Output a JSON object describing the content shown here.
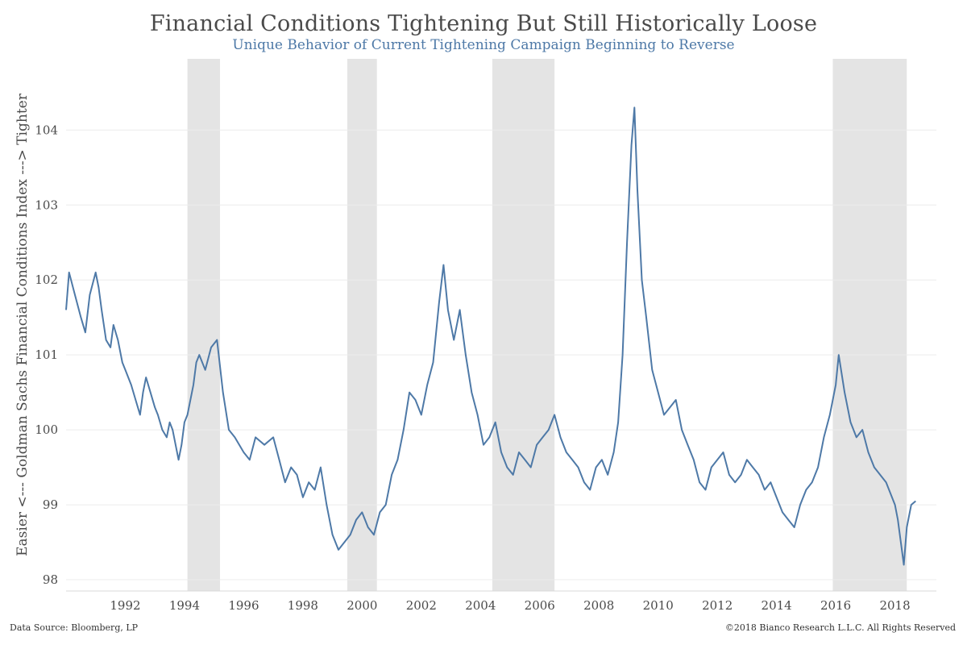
{
  "header": {
    "title": "Financial Conditions Tightening But Still Historically Loose",
    "subtitle": "Unique Behavior of Current Tightening Campaign Beginning to Reverse"
  },
  "footer": {
    "source": "Data Source: Bloomberg, LP",
    "copyright": "©2018 Bianco Research L.L.C.  All Rights Reserved"
  },
  "chart_data": {
    "type": "line",
    "title": "Financial Conditions Tightening But Still Historically Loose",
    "subtitle": "Unique Behavior of Current Tightening Campaign Beginning to Reverse",
    "xlabel": "",
    "ylabel": "Easier <--- Goldman Sachs Financial Conditions Index ---> Tighter",
    "xlim": [
      1990.0,
      2019.4
    ],
    "ylim": [
      97.85,
      104.95
    ],
    "x_ticks": [
      1992,
      1994,
      1996,
      1998,
      2000,
      2002,
      2004,
      2006,
      2008,
      2010,
      2012,
      2014,
      2016,
      2018
    ],
    "y_ticks": [
      98,
      99,
      100,
      101,
      102,
      103,
      104
    ],
    "grid": "horizontal",
    "legend": "none",
    "line_color": "#4e79a7",
    "shade_color": "#e4e4e4",
    "shaded_periods": [
      [
        1994.1,
        1995.2
      ],
      [
        1999.5,
        2000.5
      ],
      [
        2004.4,
        2006.5
      ],
      [
        2015.9,
        2018.4
      ]
    ],
    "series": [
      {
        "x": [
          1990.0,
          1990.1,
          1990.3,
          1990.5,
          1990.65,
          1990.8,
          1991.0,
          1991.1,
          1991.2,
          1991.35,
          1991.5,
          1991.6,
          1991.75,
          1991.9,
          1992.0,
          1992.2,
          1992.35,
          1992.5,
          1992.6,
          1992.7,
          1992.85,
          1993.0,
          1993.1,
          1993.25,
          1993.4,
          1993.5,
          1993.6,
          1993.7,
          1993.8,
          1993.9,
          1994.0,
          1994.1,
          1994.3,
          1994.4,
          1994.5,
          1994.7,
          1994.9,
          1995.1,
          1995.3,
          1995.5,
          1995.7,
          1996.0,
          1996.2,
          1996.4,
          1996.7,
          1997.0,
          1997.2,
          1997.4,
          1997.6,
          1997.8,
          1998.0,
          1998.2,
          1998.4,
          1998.6,
          1998.8,
          1999.0,
          1999.2,
          1999.4,
          1999.6,
          1999.8,
          2000.0,
          2000.2,
          2000.4,
          2000.6,
          2000.8,
          2001.0,
          2001.2,
          2001.4,
          2001.6,
          2001.8,
          2002.0,
          2002.2,
          2002.4,
          2002.6,
          2002.75,
          2002.9,
          2003.1,
          2003.3,
          2003.5,
          2003.7,
          2003.9,
          2004.1,
          2004.3,
          2004.5,
          2004.7,
          2004.9,
          2005.1,
          2005.3,
          2005.5,
          2005.7,
          2005.9,
          2006.1,
          2006.3,
          2006.5,
          2006.7,
          2006.9,
          2007.1,
          2007.3,
          2007.5,
          2007.7,
          2007.9,
          2008.1,
          2008.3,
          2008.5,
          2008.65,
          2008.8,
          2008.95,
          2009.1,
          2009.2,
          2009.3,
          2009.45,
          2009.6,
          2009.8,
          2010.0,
          2010.2,
          2010.4,
          2010.6,
          2010.8,
          2011.0,
          2011.2,
          2011.4,
          2011.6,
          2011.8,
          2012.0,
          2012.2,
          2012.4,
          2012.6,
          2012.8,
          2013.0,
          2013.2,
          2013.4,
          2013.6,
          2013.8,
          2014.0,
          2014.2,
          2014.4,
          2014.6,
          2014.8,
          2015.0,
          2015.2,
          2015.4,
          2015.6,
          2015.8,
          2016.0,
          2016.1,
          2016.3,
          2016.5,
          2016.7,
          2016.9,
          2017.1,
          2017.3,
          2017.5,
          2017.7,
          2017.9,
          2018.0,
          2018.1,
          2018.2,
          2018.3,
          2018.4,
          2018.55,
          2018.7
        ],
        "values": [
          101.6,
          102.1,
          101.8,
          101.5,
          101.3,
          101.8,
          102.1,
          101.9,
          101.6,
          101.2,
          101.1,
          101.4,
          101.2,
          100.9,
          100.8,
          100.6,
          100.4,
          100.2,
          100.5,
          100.7,
          100.5,
          100.3,
          100.2,
          100.0,
          99.9,
          100.1,
          100.0,
          99.8,
          99.6,
          99.8,
          100.1,
          100.2,
          100.6,
          100.9,
          101.0,
          100.8,
          101.1,
          101.2,
          100.5,
          100.0,
          99.9,
          99.7,
          99.6,
          99.9,
          99.8,
          99.9,
          99.6,
          99.3,
          99.5,
          99.4,
          99.1,
          99.3,
          99.2,
          99.5,
          99.0,
          98.6,
          98.4,
          98.5,
          98.6,
          98.8,
          98.9,
          98.7,
          98.6,
          98.9,
          99.0,
          99.4,
          99.6,
          100.0,
          100.5,
          100.4,
          100.2,
          100.6,
          100.9,
          101.7,
          102.2,
          101.6,
          101.2,
          101.6,
          101.0,
          100.5,
          100.2,
          99.8,
          99.9,
          100.1,
          99.7,
          99.5,
          99.4,
          99.7,
          99.6,
          99.5,
          99.8,
          99.9,
          100.0,
          100.2,
          99.9,
          99.7,
          99.6,
          99.5,
          99.3,
          99.2,
          99.5,
          99.6,
          99.4,
          99.7,
          100.1,
          101.0,
          102.5,
          103.8,
          104.3,
          103.2,
          102.0,
          101.5,
          100.8,
          100.5,
          100.2,
          100.3,
          100.4,
          100.0,
          99.8,
          99.6,
          99.3,
          99.2,
          99.5,
          99.6,
          99.7,
          99.4,
          99.3,
          99.4,
          99.6,
          99.5,
          99.4,
          99.2,
          99.3,
          99.1,
          98.9,
          98.8,
          98.7,
          99.0,
          99.2,
          99.3,
          99.5,
          99.9,
          100.2,
          100.6,
          101.0,
          100.5,
          100.1,
          99.9,
          100.0,
          99.7,
          99.5,
          99.4,
          99.3,
          99.1,
          99.0,
          98.8,
          98.5,
          98.2,
          98.7,
          99.0,
          99.05
        ]
      }
    ]
  }
}
